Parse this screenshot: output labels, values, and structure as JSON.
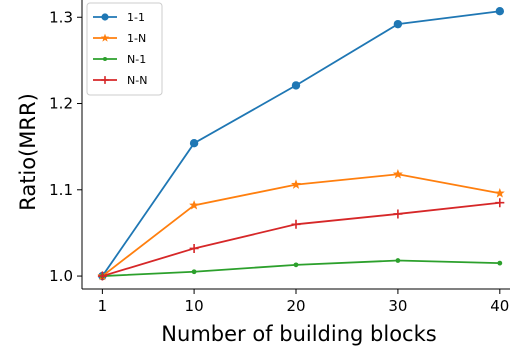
{
  "chart_data": {
    "type": "line",
    "x": [
      1,
      10,
      20,
      30,
      40
    ],
    "xticks": [
      1,
      10,
      20,
      30,
      40
    ],
    "yticks": [
      1.0,
      1.1,
      1.2,
      1.3
    ],
    "xlim": [
      -1,
      41
    ],
    "ylim": [
      0.985,
      1.32
    ],
    "xlabel": "Number of building blocks",
    "ylabel": "Ratio(MRR)",
    "grid": false,
    "legend_position": "top-left",
    "series": [
      {
        "name": "1-1",
        "values": [
          1.0,
          1.154,
          1.221,
          1.292,
          1.307
        ],
        "color": "#1f77b4",
        "marker": "circle"
      },
      {
        "name": "1-N",
        "values": [
          1.0,
          1.082,
          1.106,
          1.118,
          1.096
        ],
        "color": "#ff7f0e",
        "marker": "star"
      },
      {
        "name": "N-1",
        "values": [
          1.0,
          1.005,
          1.013,
          1.018,
          1.015
        ],
        "color": "#2ca02c",
        "marker": "point"
      },
      {
        "name": "N-N",
        "values": [
          1.0,
          1.032,
          1.06,
          1.072,
          1.085
        ],
        "color": "#d62728",
        "marker": "plus"
      }
    ]
  }
}
